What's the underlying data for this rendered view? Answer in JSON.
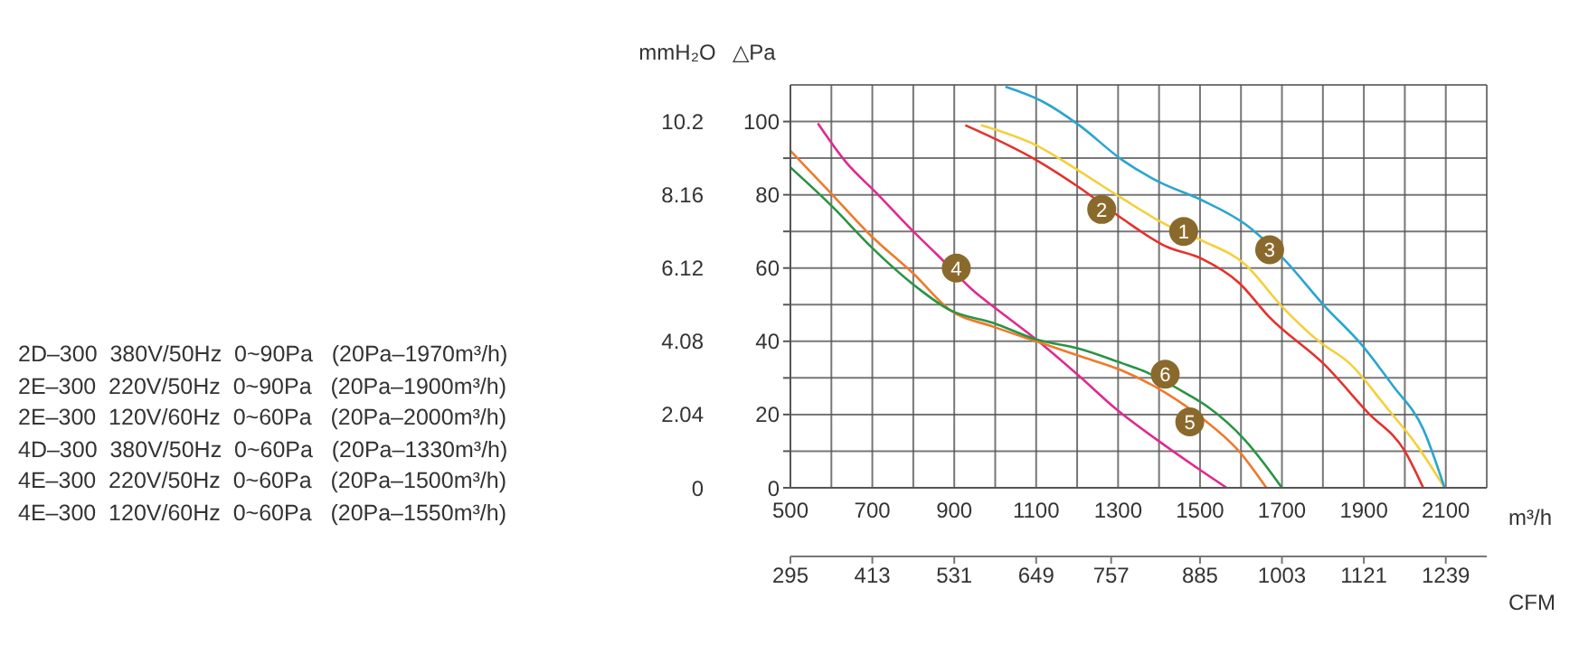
{
  "chart_data": {
    "type": "line",
    "xlabel": "m³/h",
    "x2label": "CFM",
    "ylabel": "△Pa",
    "y2label": "mmH₂O",
    "xlim": [
      500,
      2200
    ],
    "xticks": [
      500,
      {
        "value": 600,
        "label": null
      },
      700,
      {
        "value": 800,
        "label": null
      },
      900,
      {
        "value": 1000,
        "label": null
      },
      1100,
      {
        "value": 1200,
        "label": null
      },
      1300,
      {
        "value": 1400,
        "label": null
      },
      1500,
      {
        "value": 1600,
        "label": null
      },
      1700,
      {
        "value": 1800,
        "label": null
      },
      1900,
      {
        "value": 2000,
        "label": null
      },
      2100,
      {
        "value": 2200,
        "label": null
      }
    ],
    "x2lim": [
      295,
      1298
    ],
    "x2ticks": [
      295,
      413,
      531,
      649,
      757,
      885,
      1003,
      1121,
      1239
    ],
    "ylim": [
      0,
      110
    ],
    "yticks": [
      0,
      {
        "value": 10,
        "label": null
      },
      20,
      {
        "value": 30,
        "label": null
      },
      40,
      {
        "value": 50,
        "label": null
      },
      60,
      {
        "value": 70,
        "label": null
      },
      80,
      {
        "value": 90,
        "label": null
      },
      100
    ],
    "y2lim": [
      0,
      11.22
    ],
    "y2ticks": [
      0,
      2.04,
      4.08,
      6.12,
      8.16,
      10.2
    ],
    "grid": true,
    "legend": false,
    "series": [
      {
        "color": "#f5cf3a",
        "x": [
          965,
          1100,
          1205,
          1310,
          1415,
          1505,
          1610,
          1700,
          1790,
          1865,
          1955,
          2030,
          2097
        ],
        "values": [
          99,
          93.5,
          86.5,
          79,
          72,
          67.5,
          61,
          49.5,
          40,
          34,
          22,
          11.5,
          0
        ]
      },
      {
        "color": "#e5312c",
        "x": [
          927,
          1100,
          1205,
          1310,
          1415,
          1505,
          1595,
          1670,
          1805,
          1910,
          2000,
          2045
        ],
        "values": [
          99,
          89.5,
          82,
          73.5,
          66,
          62.5,
          56,
          46.5,
          33.5,
          20.5,
          10,
          0
        ]
      },
      {
        "color": "#2aa5cf",
        "x": [
          1025,
          1115,
          1205,
          1310,
          1400,
          1505,
          1610,
          1700,
          1805,
          1895,
          1970,
          2045,
          2097
        ],
        "values": [
          109.5,
          105.5,
          99,
          89.5,
          83.5,
          78.5,
          72,
          63,
          49.5,
          39,
          28,
          16,
          0
        ]
      },
      {
        "color": "#df2a8f",
        "x": [
          567,
          635,
          710,
          800,
          855,
          955,
          995,
          1100,
          1205,
          1295,
          1415,
          1505,
          1565
        ],
        "values": [
          99.5,
          89,
          80.5,
          70,
          64,
          53,
          49.5,
          40.5,
          30.5,
          21.5,
          11.5,
          4.5,
          0
        ]
      },
      {
        "color": "#ee7a2a",
        "x": [
          500,
          590,
          695,
          800,
          890,
          995,
          1100,
          1205,
          1310,
          1415,
          1505,
          1595,
          1662
        ],
        "values": [
          92,
          81.5,
          69,
          58.5,
          48.5,
          44,
          40,
          36,
          32,
          26,
          19,
          10,
          0
        ]
      },
      {
        "color": "#2a9444",
        "x": [
          500,
          605,
          695,
          800,
          890,
          995,
          1100,
          1205,
          1310,
          1360,
          1470,
          1520,
          1610,
          1700
        ],
        "values": [
          87.5,
          76.5,
          66,
          55.5,
          48.5,
          45,
          40.5,
          38,
          34,
          32,
          25.5,
          22,
          13,
          0
        ]
      }
    ],
    "annotations": [
      "2D–300  380V/50Hz  0~90Pa   (20Pa–1970m³/h)",
      "2E–300  220V/50Hz  0~90Pa   (20Pa–1900m³/h)",
      "2E–300  120V/60Hz  0~60Pa   (20Pa–2000m³/h)",
      "4D–300  380V/50Hz  0~60Pa   (20Pa–1330m³/h)",
      "4E–300  220V/50Hz  0~60Pa   (20Pa–1500m³/h)",
      "4E–300  120V/60Hz  0~60Pa   (20Pa–1550m³/h)",
      {
        "text": "1",
        "x": 1460,
        "y": 70
      },
      {
        "text": "2",
        "x": 1260,
        "y": 76
      },
      {
        "text": "3",
        "x": 1670,
        "y": 65
      },
      {
        "text": "4",
        "x": 905,
        "y": 60
      },
      {
        "text": "5",
        "x": 1475,
        "y": 18
      },
      {
        "text": "6",
        "x": 1415,
        "y": 31
      }
    ]
  }
}
